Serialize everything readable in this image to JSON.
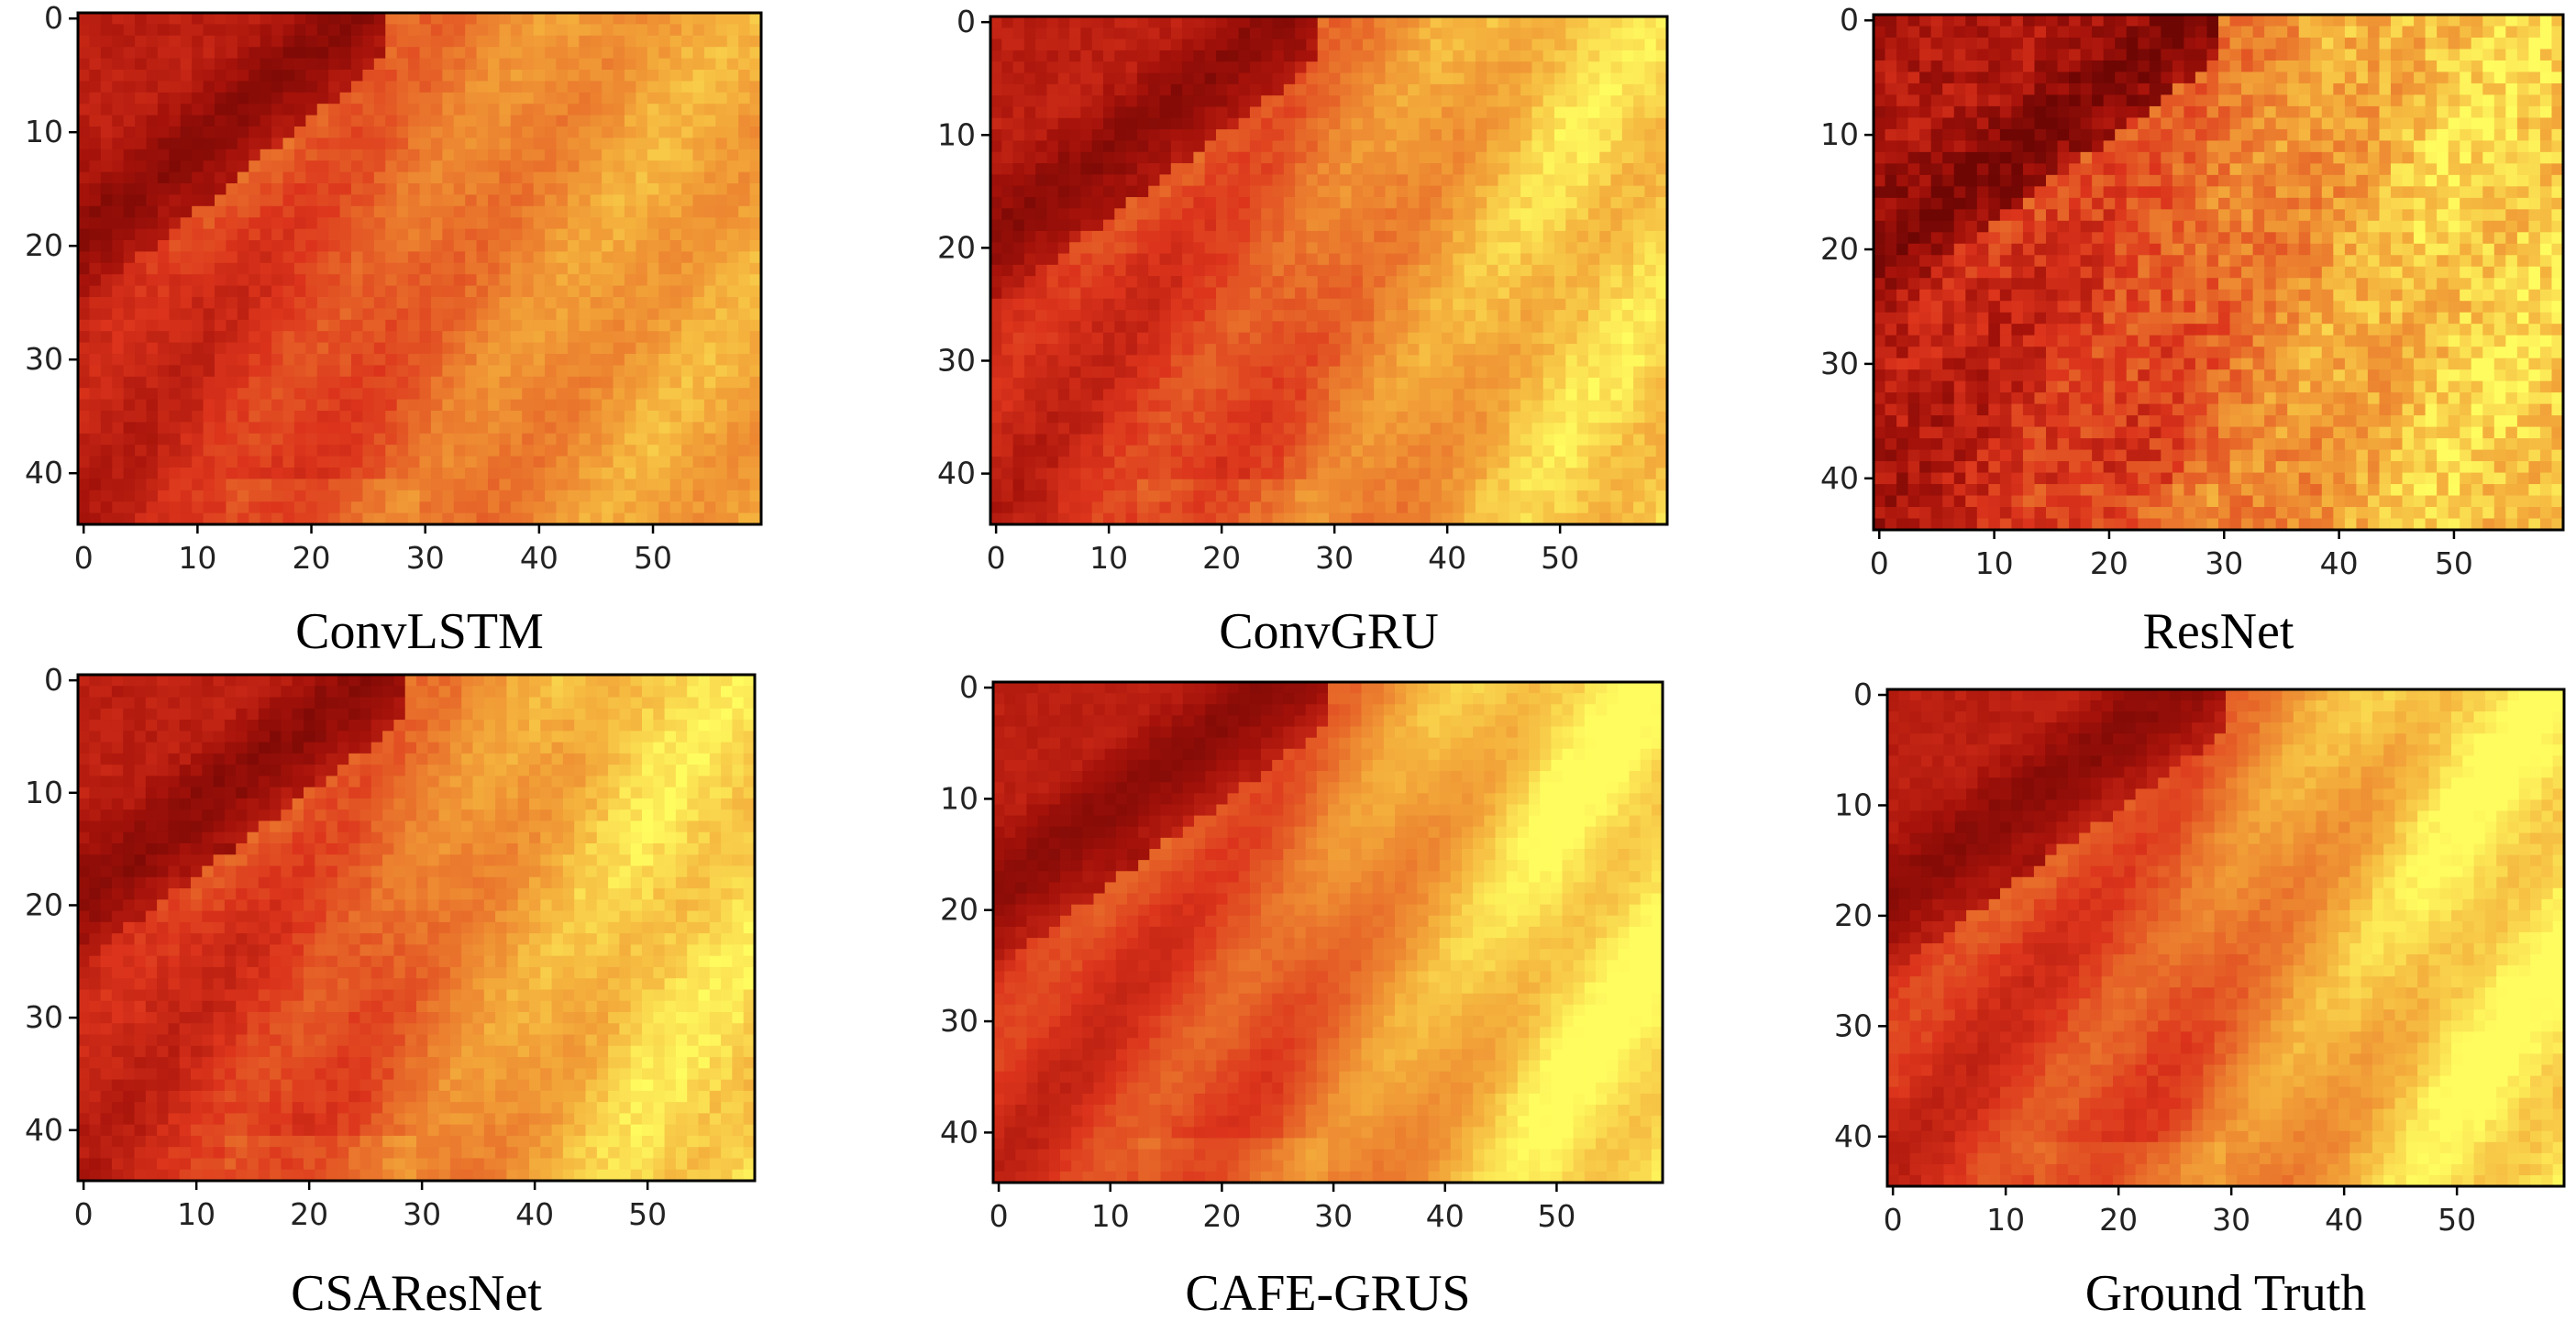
{
  "chart_data": [
    {
      "type": "heatmap",
      "title": "ConvLSTM",
      "grid": {
        "rows": 45,
        "cols": 60
      },
      "xticks": [
        "0",
        "10",
        "20",
        "30",
        "40",
        "50"
      ],
      "yticks": [
        "0",
        "10",
        "20",
        "30",
        "40"
      ],
      "colormap": "hot",
      "field": {
        "edge": 27,
        "band": "dark",
        "band_offset": 3,
        "lower_darkness": 0.45,
        "right_bright": 0.55,
        "noise": 0.05,
        "swirl": 0.1
      }
    },
    {
      "type": "heatmap",
      "title": "ConvGRU",
      "grid": {
        "rows": 45,
        "cols": 60
      },
      "xticks": [
        "0",
        "10",
        "20",
        "30",
        "40",
        "50"
      ],
      "yticks": [
        "0",
        "10",
        "20",
        "30",
        "40"
      ],
      "colormap": "hot",
      "field": {
        "edge": 29,
        "band": "dark",
        "band_offset": 3,
        "lower_darkness": 0.4,
        "right_bright": 0.85,
        "noise": 0.05,
        "swirl": 0.12
      }
    },
    {
      "type": "heatmap",
      "title": "ResNet",
      "grid": {
        "rows": 45,
        "cols": 60
      },
      "xticks": [
        "0",
        "10",
        "20",
        "30",
        "40",
        "50"
      ],
      "yticks": [
        "0",
        "10",
        "20",
        "30",
        "40"
      ],
      "colormap": "hot",
      "field": {
        "edge": 30,
        "band": "very-dark",
        "band_offset": 2,
        "lower_darkness": 0.55,
        "right_bright": 0.85,
        "noise": 0.12,
        "swirl": 0.08
      }
    },
    {
      "type": "heatmap",
      "title": "CSAResNet",
      "grid": {
        "rows": 45,
        "cols": 60
      },
      "xticks": [
        "0",
        "10",
        "20",
        "30",
        "40",
        "50"
      ],
      "yticks": [
        "0",
        "10",
        "20",
        "30",
        "40"
      ],
      "colormap": "hot",
      "field": {
        "edge": 29,
        "band": "dark",
        "band_offset": 3,
        "lower_darkness": 0.42,
        "right_bright": 0.9,
        "noise": 0.05,
        "swirl": 0.1
      }
    },
    {
      "type": "heatmap",
      "title": "CAFE-GRUS",
      "grid": {
        "rows": 45,
        "cols": 60
      },
      "xticks": [
        "0",
        "10",
        "20",
        "30",
        "40",
        "50"
      ],
      "yticks": [
        "0",
        "10",
        "20",
        "30",
        "40"
      ],
      "colormap": "hot",
      "field": {
        "edge": 30,
        "band": "dark",
        "band_offset": 4,
        "lower_darkness": 0.3,
        "right_bright": 1.0,
        "noise": 0.03,
        "swirl": 0.15
      }
    },
    {
      "type": "heatmap",
      "title": "Ground Truth",
      "grid": {
        "rows": 45,
        "cols": 60
      },
      "xticks": [
        "0",
        "10",
        "20",
        "30",
        "40",
        "50"
      ],
      "yticks": [
        "0",
        "10",
        "20",
        "30",
        "40"
      ],
      "colormap": "hot",
      "field": {
        "edge": 30,
        "band": "dark",
        "band_offset": 4,
        "lower_darkness": 0.3,
        "right_bright": 1.0,
        "noise": 0.04,
        "swirl": 0.15
      }
    }
  ]
}
